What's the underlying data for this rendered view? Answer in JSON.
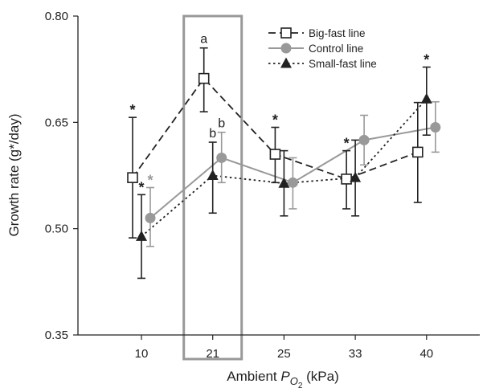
{
  "chart_data": {
    "type": "line",
    "ylabel": "Growth rate (g*/day)",
    "xlabel": {
      "prefix": "Ambient ",
      "P": "P",
      "sub": "O",
      "subsub": "2",
      "suffix": " (kPa)"
    },
    "categories": [
      "10",
      "21",
      "25",
      "33",
      "40"
    ],
    "yticks": [
      "0.35",
      "0.50",
      "0.65",
      "0.80"
    ],
    "ylim": [
      0.35,
      0.8
    ],
    "grid": false,
    "legend_position": "top-right",
    "highlighted_category": "21",
    "series": [
      {
        "name": "Big-fast line",
        "color": "#222222",
        "marker": "open-square",
        "line": "dashed",
        "offset": -1,
        "values": [
          0.572,
          0.712,
          0.605,
          0.57,
          0.608
        ],
        "err_low": [
          0.487,
          0.665,
          0.565,
          0.528,
          0.537
        ],
        "err_high": [
          0.657,
          0.755,
          0.643,
          0.61,
          0.678
        ]
      },
      {
        "name": "Control line",
        "color": "#999999",
        "marker": "filled-circle",
        "line": "solid",
        "offset": 1,
        "values": [
          0.515,
          0.6,
          0.565,
          0.625,
          0.643
        ],
        "err_low": [
          0.475,
          0.565,
          0.528,
          0.59,
          0.608
        ],
        "err_high": [
          0.558,
          0.636,
          0.6,
          0.66,
          0.679
        ]
      },
      {
        "name": "Small-fast line",
        "color": "#222222",
        "marker": "filled-triangle",
        "line": "dotted",
        "offset": 0,
        "values": [
          0.489,
          0.575,
          0.564,
          0.572,
          0.683
        ],
        "err_low": [
          0.43,
          0.522,
          0.518,
          0.518,
          0.632
        ],
        "err_high": [
          0.548,
          0.622,
          0.61,
          0.625,
          0.728
        ]
      }
    ],
    "annotations": [
      {
        "text": "*",
        "category": "10",
        "series": "Big-fast line",
        "color": "#222222"
      },
      {
        "text": "*",
        "category": "10",
        "series": "Small-fast line",
        "color": "#222222"
      },
      {
        "text": "*",
        "category": "10",
        "series": "Control line",
        "color": "#999999"
      },
      {
        "text": "a",
        "category": "21",
        "series": "Big-fast line",
        "color": "#222222"
      },
      {
        "text": "b",
        "category": "21",
        "series": "Small-fast line",
        "color": "#222222"
      },
      {
        "text": "b",
        "category": "21",
        "series": "Control line",
        "color": "#222222"
      },
      {
        "text": "*",
        "category": "25",
        "series": "Big-fast line",
        "color": "#222222"
      },
      {
        "text": "*",
        "category": "33",
        "series": "Big-fast line",
        "color": "#222222"
      },
      {
        "text": "*",
        "category": "40",
        "series": "Small-fast line",
        "color": "#222222"
      }
    ]
  }
}
